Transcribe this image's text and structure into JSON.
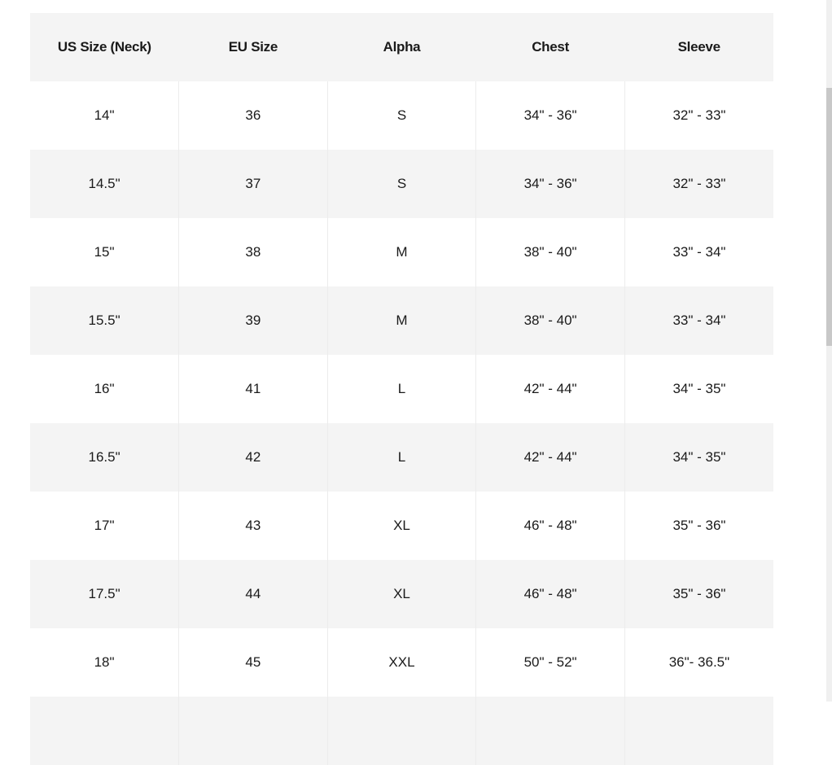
{
  "size_chart": {
    "headers": [
      "US Size (Neck)",
      "EU Size",
      "Alpha",
      "Chest",
      "Sleeve"
    ],
    "rows": [
      [
        "14\"",
        "36",
        "S",
        "34\" - 36\"",
        "32\" - 33\""
      ],
      [
        "14.5\"",
        "37",
        "S",
        "34\" - 36\"",
        "32\" - 33\""
      ],
      [
        "15\"",
        "38",
        "M",
        "38\" - 40\"",
        "33\" - 34\""
      ],
      [
        "15.5\"",
        "39",
        "M",
        "38\" - 40\"",
        "33\" - 34\""
      ],
      [
        "16\"",
        "41",
        "L",
        "42\" - 44\"",
        "34\" - 35\""
      ],
      [
        "16.5\"",
        "42",
        "L",
        "42\" - 44\"",
        "34\" - 35\""
      ],
      [
        "17\"",
        "43",
        "XL",
        "46\" - 48\"",
        "35\" - 36\""
      ],
      [
        "17.5\"",
        "44",
        "XL",
        "46\" - 48\"",
        "35\" - 36\""
      ],
      [
        "18\"",
        "45",
        "XXL",
        "50\" - 52\"",
        "36\"- 36.5\""
      ],
      [
        "",
        "",
        "",
        "",
        ""
      ]
    ]
  },
  "colors": {
    "header_bg": "#f4f4f4",
    "stripe_bg": "#f4f4f4",
    "text": "#1a1a1a"
  }
}
